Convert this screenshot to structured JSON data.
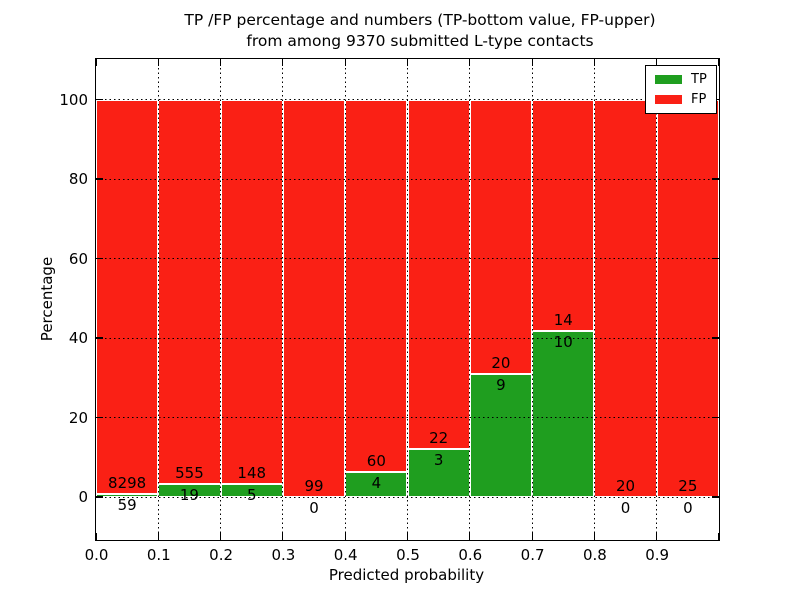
{
  "chart_data": {
    "type": "bar",
    "stacked": true,
    "title": "TP /FP percentage and numbers (TP-bottom value, FP-upper)\nfrom among 9370 submitted L-type contacts",
    "xlabel": "Predicted probability",
    "ylabel": "Percentage",
    "categories": [
      "0.0-0.1",
      "0.1-0.2",
      "0.2-0.3",
      "0.3-0.4",
      "0.4-0.5",
      "0.5-0.6",
      "0.6-0.7",
      "0.7-0.8",
      "0.8-0.9",
      "0.9-1.0"
    ],
    "x_tick_labels": [
      "0.0",
      "0.1",
      "0.2",
      "0.3",
      "0.4",
      "0.5",
      "0.6",
      "0.7",
      "0.8",
      "0.9"
    ],
    "y_ticks": [
      0,
      20,
      40,
      60,
      80,
      100
    ],
    "y_tick_labels": [
      "0",
      "20",
      "40",
      "60",
      "80",
      "100"
    ],
    "xlim": [
      0.0,
      1.0
    ],
    "ylim": [
      -11,
      110
    ],
    "grid": "dotted",
    "annotation_scheme": "FP count above boundary, TP count below boundary",
    "legend_position": "upper right",
    "legend": [
      {
        "label": "TP",
        "color": "#1f9e1f"
      },
      {
        "label": "FP",
        "color": "#fa2015"
      }
    ],
    "series": [
      {
        "name": "TP",
        "values": [
          59,
          19,
          5,
          0,
          4,
          3,
          9,
          10,
          0,
          0
        ]
      },
      {
        "name": "FP",
        "values": [
          8298,
          555,
          148,
          99,
          60,
          22,
          20,
          14,
          20,
          25
        ]
      }
    ],
    "bins": [
      {
        "range": "0.0-0.1",
        "tp": 59,
        "fp": 8298,
        "tp_percent": 0.71
      },
      {
        "range": "0.1-0.2",
        "tp": 19,
        "fp": 555,
        "tp_percent": 3.31
      },
      {
        "range": "0.2-0.3",
        "tp": 5,
        "fp": 148,
        "tp_percent": 3.27
      },
      {
        "range": "0.3-0.4",
        "tp": 0,
        "fp": 99,
        "tp_percent": 0
      },
      {
        "range": "0.4-0.5",
        "tp": 4,
        "fp": 60,
        "tp_percent": 6.25
      },
      {
        "range": "0.5-0.6",
        "tp": 3,
        "fp": 22,
        "tp_percent": 12.0
      },
      {
        "range": "0.6-0.7",
        "tp": 9,
        "fp": 20,
        "tp_percent": 31.03
      },
      {
        "range": "0.7-0.8",
        "tp": 10,
        "fp": 14,
        "tp_percent": 41.67
      },
      {
        "range": "0.8-0.9",
        "tp": 0,
        "fp": 20,
        "tp_percent": 0
      },
      {
        "range": "0.9-1.0",
        "tp": 0,
        "fp": 25,
        "tp_percent": 0
      }
    ],
    "colors": {
      "tp": "#1f9e1f",
      "fp": "#fa2015",
      "grid": "#000000",
      "background": "#ffffff"
    }
  }
}
